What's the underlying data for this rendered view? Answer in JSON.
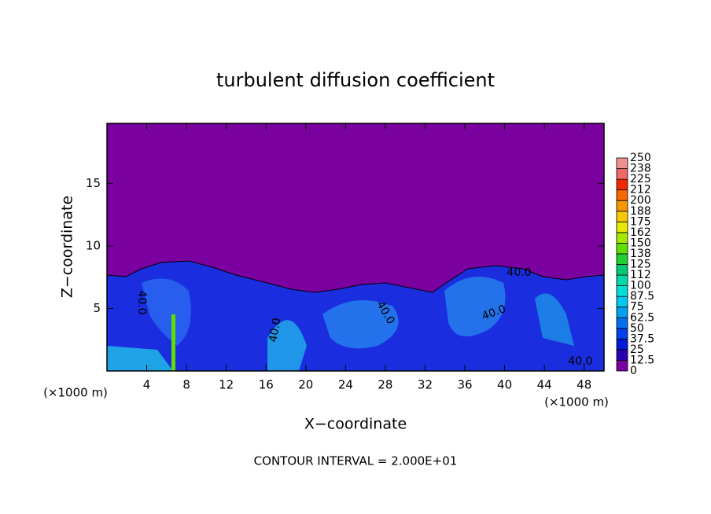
{
  "chart_data": {
    "type": "contour",
    "title": "turbulent diffusion coefficient",
    "x_label": "X−coordinate",
    "y_label": "Z−coordinate",
    "x_unit": "(×1000 m)",
    "footnote": "CONTOUR INTERVAL = 2.000E+01",
    "xlim": [
      0,
      50
    ],
    "xticks": [
      4,
      8,
      12,
      16,
      20,
      24,
      28,
      32,
      36,
      40,
      44,
      48
    ],
    "ylim": [
      0,
      19.8
    ],
    "yticks": [
      5,
      10,
      15
    ],
    "contour_labels": [
      "40.0",
      "40.0",
      "40.0",
      "40.0",
      "40.0",
      "40.0"
    ],
    "colorbar": {
      "levels": [
        0,
        12.5,
        25,
        37.5,
        50,
        62.5,
        75,
        87.5,
        100,
        112,
        125,
        138,
        150,
        162,
        175,
        188,
        200,
        212,
        225,
        238,
        250
      ],
      "colors": [
        "#7a00a0",
        "#2a00b4",
        "#0018d8",
        "#0040ee",
        "#0070f0",
        "#00a0f0",
        "#00c8f0",
        "#00e0d8",
        "#00d8a8",
        "#00c870",
        "#20d030",
        "#60e000",
        "#a8e800",
        "#e8e800",
        "#f8c800",
        "#f89800",
        "#f86800",
        "#f02800",
        "#f06868",
        "#f09090"
      ]
    }
  }
}
